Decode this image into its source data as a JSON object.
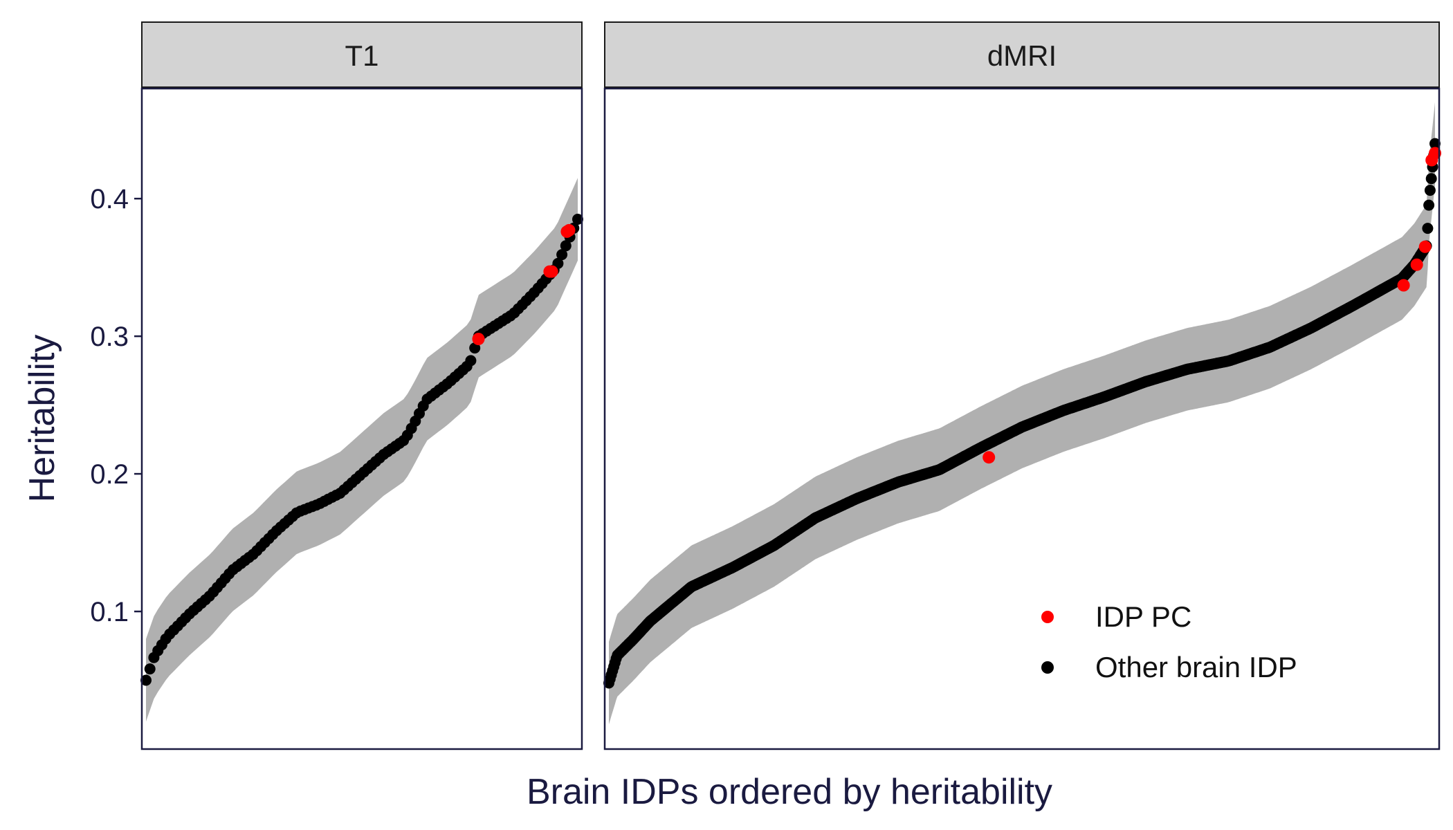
{
  "chart_data": {
    "type": "scatter",
    "ylabel": "Heritability",
    "xlabel": "Brain IDPs ordered by heritability",
    "ylim": [
      0.0,
      0.48
    ],
    "y_ticks": [
      "0.1",
      "0.2",
      "0.3",
      "0.4"
    ],
    "legend": {
      "placement": "bottom-right of dMRI panel",
      "entries": [
        {
          "label": "IDP PC",
          "color": "#ff0000"
        },
        {
          "label": "Other brain IDP",
          "color": "#000000"
        }
      ]
    },
    "point_color_other": "#000000",
    "point_color_pc": "#ff0000",
    "band_color": "#b0b0b0",
    "panels": [
      {
        "name": "T1",
        "n_points": 110,
        "ci_half_width": 0.03,
        "curve": [
          [
            0.0,
            0.05
          ],
          [
            0.02,
            0.068
          ],
          [
            0.05,
            0.082
          ],
          [
            0.1,
            0.098
          ],
          [
            0.15,
            0.112
          ],
          [
            0.2,
            0.13
          ],
          [
            0.25,
            0.142
          ],
          [
            0.3,
            0.158
          ],
          [
            0.35,
            0.172
          ],
          [
            0.4,
            0.178
          ],
          [
            0.45,
            0.186
          ],
          [
            0.5,
            0.2
          ],
          [
            0.55,
            0.214
          ],
          [
            0.6,
            0.225
          ],
          [
            0.62,
            0.236
          ],
          [
            0.65,
            0.254
          ],
          [
            0.7,
            0.266
          ],
          [
            0.75,
            0.28
          ],
          [
            0.77,
            0.3
          ],
          [
            0.8,
            0.306
          ],
          [
            0.85,
            0.316
          ],
          [
            0.9,
            0.332
          ],
          [
            0.95,
            0.35
          ],
          [
            1.0,
            0.385
          ]
        ],
        "pc_points": [
          [
            0.77,
            0.298
          ],
          [
            0.935,
            0.347
          ],
          [
            0.94,
            0.347
          ],
          [
            0.975,
            0.376
          ],
          [
            0.98,
            0.377
          ]
        ]
      },
      {
        "name": "dMRI",
        "n_points": 675,
        "ci_half_width": 0.03,
        "curve": [
          [
            0.0,
            0.048
          ],
          [
            0.01,
            0.068
          ],
          [
            0.03,
            0.08
          ],
          [
            0.05,
            0.093
          ],
          [
            0.1,
            0.118
          ],
          [
            0.15,
            0.132
          ],
          [
            0.2,
            0.148
          ],
          [
            0.25,
            0.168
          ],
          [
            0.3,
            0.182
          ],
          [
            0.35,
            0.194
          ],
          [
            0.4,
            0.203
          ],
          [
            0.45,
            0.219
          ],
          [
            0.5,
            0.234
          ],
          [
            0.55,
            0.246
          ],
          [
            0.6,
            0.256
          ],
          [
            0.65,
            0.267
          ],
          [
            0.7,
            0.276
          ],
          [
            0.75,
            0.282
          ],
          [
            0.8,
            0.292
          ],
          [
            0.85,
            0.306
          ],
          [
            0.9,
            0.322
          ],
          [
            0.93,
            0.332
          ],
          [
            0.96,
            0.342
          ],
          [
            0.975,
            0.352
          ],
          [
            0.99,
            0.366
          ],
          [
            0.993,
            0.4
          ],
          [
            1.0,
            0.44
          ]
        ],
        "pc_points": [
          [
            0.46,
            0.212
          ],
          [
            0.962,
            0.337
          ],
          [
            0.978,
            0.352
          ],
          [
            0.988,
            0.365
          ],
          [
            0.996,
            0.428
          ],
          [
            1.0,
            0.433
          ]
        ]
      }
    ]
  }
}
